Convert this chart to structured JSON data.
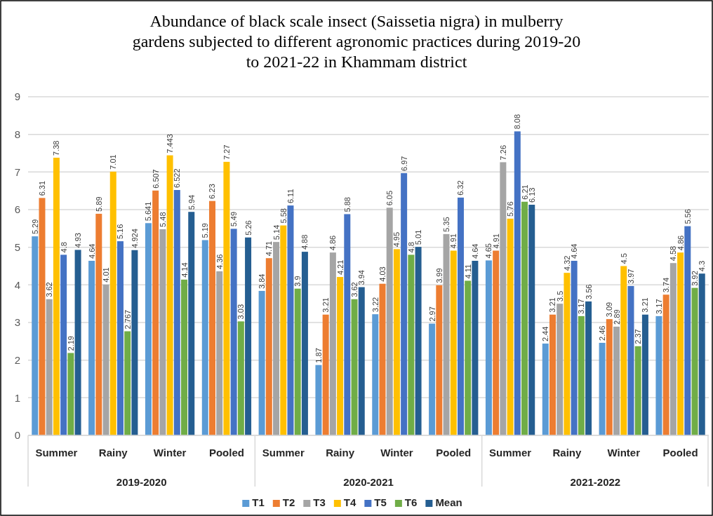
{
  "chart_data": {
    "type": "bar",
    "title": "Abundance of black scale insect (Saissetia nigra) in mulberry gardens subjected to different agronomic practices during 2019-20 to 2021-22 in Khammam district",
    "categories": [
      "Summer",
      "Rainy",
      "Winter",
      "Pooled",
      "Summer",
      "Rainy",
      "Winter",
      "Pooled",
      "Summer",
      "Rainy",
      "Winter",
      "Pooled"
    ],
    "annotations": [
      "2019-2020",
      "2020-2021",
      "2021-2022"
    ],
    "series": [
      {
        "name": "T1",
        "color": "#5b9bd5",
        "values": [
          5.29,
          4.64,
          5.641,
          5.19,
          3.84,
          1.87,
          3.22,
          2.97,
          4.65,
          2.44,
          2.46,
          3.17
        ]
      },
      {
        "name": "T2",
        "color": "#ed7d31",
        "values": [
          6.31,
          5.89,
          6.507,
          6.23,
          4.71,
          3.21,
          4.03,
          3.99,
          4.91,
          3.21,
          3.09,
          3.74
        ]
      },
      {
        "name": "T3",
        "color": "#a5a5a5",
        "values": [
          3.62,
          4.01,
          5.48,
          4.36,
          5.14,
          4.86,
          6.05,
          5.35,
          7.26,
          3.5,
          2.89,
          4.58
        ]
      },
      {
        "name": "T4",
        "color": "#ffc000",
        "values": [
          7.38,
          7.01,
          7.443,
          7.27,
          5.58,
          4.21,
          4.95,
          4.91,
          5.76,
          4.32,
          4.5,
          4.86
        ]
      },
      {
        "name": "T5",
        "color": "#4472c4",
        "values": [
          4.8,
          5.16,
          6.522,
          5.49,
          6.11,
          5.88,
          6.97,
          6.32,
          8.08,
          4.64,
          3.97,
          5.56
        ]
      },
      {
        "name": "T6",
        "color": "#70ad47",
        "values": [
          2.19,
          2.767,
          4.14,
          3.03,
          3.9,
          3.62,
          4.8,
          4.11,
          6.21,
          3.17,
          2.37,
          3.92
        ]
      },
      {
        "name": "Mean",
        "color": "#255e91",
        "values": [
          4.93,
          4.924,
          5.94,
          5.26,
          4.88,
          3.94,
          5.01,
          4.64,
          6.13,
          3.56,
          3.21,
          4.3
        ]
      }
    ],
    "ylim": [
      0,
      9
    ],
    "yticks": [
      0,
      1,
      2,
      3,
      4,
      5,
      6,
      7,
      8,
      9
    ],
    "grid": "y",
    "legend": "bottom",
    "data_labels": true
  }
}
